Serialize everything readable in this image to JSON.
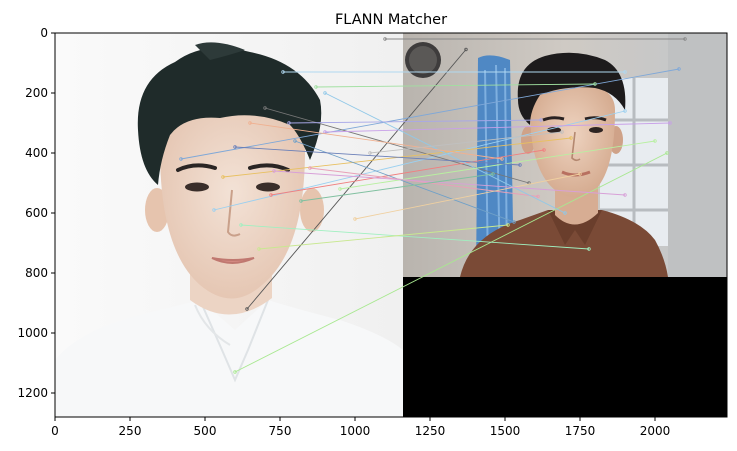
{
  "chart_data": {
    "type": "image",
    "title": "FLANN Matcher",
    "xlim": [
      0,
      2240
    ],
    "ylim": [
      1280,
      0
    ],
    "x_ticks": [
      0,
      250,
      500,
      750,
      1000,
      1250,
      1500,
      1750,
      2000
    ],
    "y_ticks": [
      0,
      200,
      400,
      600,
      800,
      1000,
      1200
    ],
    "grid": false,
    "legend": "none",
    "panels": [
      {
        "name": "query-image",
        "content": "portrait on white background",
        "x_range": [
          0,
          1160
        ],
        "y_range": [
          0,
          1280
        ]
      },
      {
        "name": "train-image",
        "content": "portrait in room with window",
        "x_range": [
          1160,
          2240
        ],
        "y_range": [
          0,
          815
        ]
      },
      {
        "name": "padding",
        "content": "black fill",
        "x_range": [
          1160,
          2240
        ],
        "y_range": [
          815,
          1280
        ]
      }
    ],
    "match_lines": [
      {
        "x1": 640,
        "y1": 920,
        "x2": 1370,
        "y2": 55,
        "color": "#555555"
      },
      {
        "x1": 600,
        "y1": 1130,
        "x2": 2040,
        "y2": 400,
        "color": "#a8e890"
      },
      {
        "x1": 420,
        "y1": 420,
        "x2": 2080,
        "y2": 120,
        "color": "#7fa8d8"
      },
      {
        "x1": 530,
        "y1": 590,
        "x2": 1900,
        "y2": 260,
        "color": "#9bd0f0"
      },
      {
        "x1": 700,
        "y1": 250,
        "x2": 1580,
        "y2": 500,
        "color": "#777777"
      },
      {
        "x1": 760,
        "y1": 130,
        "x2": 1900,
        "y2": 130,
        "color": "#b0d8f0"
      },
      {
        "x1": 720,
        "y1": 540,
        "x2": 1630,
        "y2": 390,
        "color": "#f08080"
      },
      {
        "x1": 620,
        "y1": 640,
        "x2": 1780,
        "y2": 720,
        "color": "#a0f0c0"
      },
      {
        "x1": 900,
        "y1": 330,
        "x2": 2050,
        "y2": 300,
        "color": "#c8a0e8"
      },
      {
        "x1": 560,
        "y1": 480,
        "x2": 1720,
        "y2": 350,
        "color": "#e8c060"
      },
      {
        "x1": 800,
        "y1": 360,
        "x2": 1530,
        "y2": 630,
        "color": "#6fa0c8"
      },
      {
        "x1": 850,
        "y1": 450,
        "x2": 1610,
        "y2": 545,
        "color": "#e8a0b8"
      },
      {
        "x1": 680,
        "y1": 720,
        "x2": 1510,
        "y2": 640,
        "color": "#c8e890"
      },
      {
        "x1": 900,
        "y1": 200,
        "x2": 1700,
        "y2": 600,
        "color": "#90c8e8"
      },
      {
        "x1": 1100,
        "y1": 20,
        "x2": 2100,
        "y2": 20,
        "color": "#888888"
      },
      {
        "x1": 780,
        "y1": 300,
        "x2": 1620,
        "y2": 290,
        "color": "#a8a8e8"
      },
      {
        "x1": 950,
        "y1": 520,
        "x2": 2000,
        "y2": 360,
        "color": "#b8f0a0"
      },
      {
        "x1": 600,
        "y1": 380,
        "x2": 1550,
        "y2": 440,
        "color": "#6a7fb8"
      },
      {
        "x1": 1000,
        "y1": 620,
        "x2": 1750,
        "y2": 470,
        "color": "#f0d0a0"
      },
      {
        "x1": 870,
        "y1": 180,
        "x2": 1800,
        "y2": 170,
        "color": "#a0e0a0"
      },
      {
        "x1": 730,
        "y1": 460,
        "x2": 1900,
        "y2": 540,
        "color": "#d8a0d8"
      },
      {
        "x1": 820,
        "y1": 560,
        "x2": 1460,
        "y2": 470,
        "color": "#80c0a0"
      },
      {
        "x1": 650,
        "y1": 300,
        "x2": 1490,
        "y2": 420,
        "color": "#f0b090"
      },
      {
        "x1": 1050,
        "y1": 400,
        "x2": 1690,
        "y2": 330,
        "color": "#c0c0c0"
      }
    ]
  }
}
